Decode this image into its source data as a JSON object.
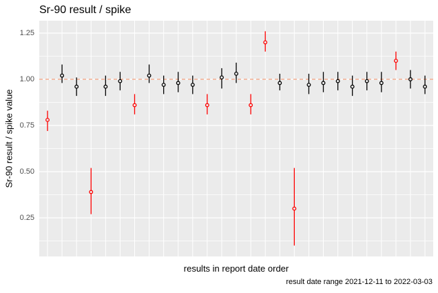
{
  "title": "Sr-90 result / spike",
  "colors": {
    "panel_bg": "#EBEBEB",
    "grid": "#FFFFFF",
    "reference_line": "#F2A17C",
    "point_ok": "#000000",
    "point_flag": "#FF0000",
    "tick_text": "#4D4D4D",
    "axis_text": "#000000"
  },
  "chart_data": {
    "type": "scatter",
    "subtype": "pointrange",
    "title": "Sr-90 result / spike",
    "xlabel": "results in report date order",
    "ylabel": "Sr-90 result / spike value",
    "caption": "result date range 2021-12-11 to 2022-03-03",
    "grid": "on",
    "legend": "none",
    "xlim": [
      0.5,
      27.5
    ],
    "ylim": [
      0.04,
      1.32
    ],
    "yticks": [
      {
        "label": "0.25",
        "value": 0.25
      },
      {
        "label": "0.50",
        "value": 0.5
      },
      {
        "label": "0.75",
        "value": 0.75
      },
      {
        "label": "1.00",
        "value": 1.0
      },
      {
        "label": "1.25",
        "value": 1.25
      }
    ],
    "reference_line": {
      "y": 1.0,
      "style": "dashed"
    },
    "points": [
      {
        "x": 1,
        "y": 0.78,
        "lo": 0.72,
        "hi": 0.83,
        "flag": true
      },
      {
        "x": 2,
        "y": 1.02,
        "lo": 0.98,
        "hi": 1.08,
        "flag": false
      },
      {
        "x": 3,
        "y": 0.96,
        "lo": 0.91,
        "hi": 1.01,
        "flag": false
      },
      {
        "x": 4,
        "y": 0.39,
        "lo": 0.27,
        "hi": 0.52,
        "flag": true
      },
      {
        "x": 5,
        "y": 0.96,
        "lo": 0.91,
        "hi": 1.02,
        "flag": false
      },
      {
        "x": 6,
        "y": 0.99,
        "lo": 0.94,
        "hi": 1.04,
        "flag": false
      },
      {
        "x": 7,
        "y": 0.86,
        "lo": 0.81,
        "hi": 0.92,
        "flag": true
      },
      {
        "x": 8,
        "y": 1.02,
        "lo": 0.98,
        "hi": 1.08,
        "flag": false
      },
      {
        "x": 9,
        "y": 0.97,
        "lo": 0.92,
        "hi": 1.02,
        "flag": false
      },
      {
        "x": 10,
        "y": 0.98,
        "lo": 0.93,
        "hi": 1.04,
        "flag": false
      },
      {
        "x": 11,
        "y": 0.97,
        "lo": 0.92,
        "hi": 1.02,
        "flag": false
      },
      {
        "x": 12,
        "y": 0.86,
        "lo": 0.81,
        "hi": 0.92,
        "flag": true
      },
      {
        "x": 13,
        "y": 1.01,
        "lo": 0.95,
        "hi": 1.06,
        "flag": false
      },
      {
        "x": 14,
        "y": 1.03,
        "lo": 0.98,
        "hi": 1.09,
        "flag": false
      },
      {
        "x": 15,
        "y": 0.86,
        "lo": 0.81,
        "hi": 0.92,
        "flag": true
      },
      {
        "x": 16,
        "y": 1.2,
        "lo": 1.15,
        "hi": 1.26,
        "flag": true
      },
      {
        "x": 17,
        "y": 0.98,
        "lo": 0.94,
        "hi": 1.03,
        "flag": false
      },
      {
        "x": 18,
        "y": 0.3,
        "lo": 0.1,
        "hi": 0.52,
        "flag": true
      },
      {
        "x": 19,
        "y": 0.97,
        "lo": 0.92,
        "hi": 1.03,
        "flag": false
      },
      {
        "x": 20,
        "y": 0.98,
        "lo": 0.93,
        "hi": 1.04,
        "flag": false
      },
      {
        "x": 21,
        "y": 0.99,
        "lo": 0.94,
        "hi": 1.04,
        "flag": false
      },
      {
        "x": 22,
        "y": 0.96,
        "lo": 0.91,
        "hi": 1.02,
        "flag": false
      },
      {
        "x": 23,
        "y": 0.99,
        "lo": 0.94,
        "hi": 1.04,
        "flag": false
      },
      {
        "x": 24,
        "y": 0.98,
        "lo": 0.93,
        "hi": 1.04,
        "flag": false
      },
      {
        "x": 25,
        "y": 1.1,
        "lo": 1.05,
        "hi": 1.15,
        "flag": true
      },
      {
        "x": 26,
        "y": 1.0,
        "lo": 0.95,
        "hi": 1.05,
        "flag": false
      },
      {
        "x": 27,
        "y": 0.96,
        "lo": 0.92,
        "hi": 1.02,
        "flag": false
      }
    ]
  }
}
